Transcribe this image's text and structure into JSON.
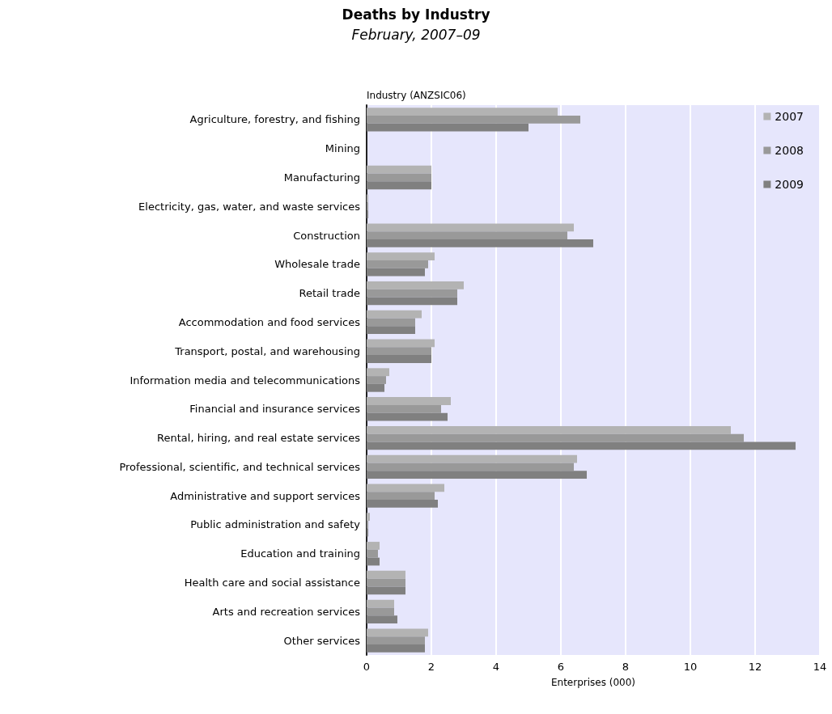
{
  "chart_data": {
    "type": "bar",
    "orientation": "horizontal",
    "title": "Deaths by Industry",
    "subtitle": "February, 2007–09",
    "ylabel": "Industry (ANZSIC06)",
    "xlabel": "Enterprises (000)",
    "categories": [
      "Agriculture, forestry, and fishing",
      "Mining",
      "Manufacturing",
      "Electricity, gas, water, and waste services",
      "Construction",
      "Wholesale trade",
      "Retail trade",
      "Accommodation and food services",
      "Transport, postal, and warehousing",
      "Information media and telecommunications",
      "Financial and insurance services",
      "Rental, hiring, and real estate services",
      "Professional, scientific, and technical services",
      "Administrative and support services",
      "Public administration and safety",
      "Education and training",
      "Health care and social assistance",
      "Arts and recreation services",
      "Other services"
    ],
    "series": [
      {
        "name": "2007",
        "color": "#b3b3b3",
        "values": [
          5.9,
          0,
          2.0,
          0.05,
          6.4,
          2.1,
          3.0,
          1.7,
          2.1,
          0.7,
          2.6,
          11.25,
          6.5,
          2.4,
          0.1,
          0.4,
          1.2,
          0.85,
          1.9
        ]
      },
      {
        "name": "2008",
        "color": "#999999",
        "values": [
          6.6,
          0,
          2.0,
          0.05,
          6.2,
          1.9,
          2.8,
          1.5,
          2.0,
          0.6,
          2.3,
          11.65,
          6.4,
          2.1,
          0.05,
          0.35,
          1.2,
          0.85,
          1.8
        ]
      },
      {
        "name": "2009",
        "color": "#808080",
        "values": [
          5.0,
          0,
          2.0,
          0.05,
          7.0,
          1.8,
          2.8,
          1.5,
          2.0,
          0.55,
          2.5,
          13.25,
          6.8,
          2.2,
          0.05,
          0.4,
          1.2,
          0.95,
          1.8
        ]
      }
    ],
    "xlim": [
      0,
      14
    ],
    "xticks": [
      0,
      2,
      4,
      6,
      8,
      10,
      12,
      14
    ],
    "grid": "x",
    "legend": "top right"
  }
}
